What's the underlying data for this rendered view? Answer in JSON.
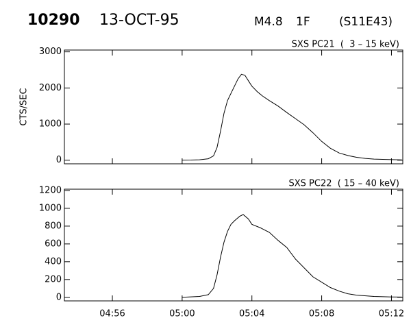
{
  "header": {
    "event": "10290",
    "date": "13-OCT-95",
    "class": "M4.8",
    "optical": "1F",
    "location": "(S11E43)"
  },
  "chart_data": [
    {
      "type": "line",
      "label": "SXS PC21  (  3 – 15 keV)",
      "ylabel": "CTS/SEC",
      "color": "#000000",
      "x": [
        300,
        300.5,
        301,
        301.5,
        301.8,
        302,
        302.2,
        302.4,
        302.6,
        302.8,
        303,
        303.2,
        303.4,
        303.6,
        303.8,
        304,
        304.3,
        304.6,
        305,
        305.5,
        306,
        306.5,
        307,
        307.5,
        308,
        308.5,
        309,
        309.5,
        310,
        310.5,
        311,
        312,
        312.6
      ],
      "values": [
        2,
        5,
        12,
        40,
        120,
        350,
        800,
        1300,
        1650,
        1850,
        2050,
        2250,
        2380,
        2350,
        2200,
        2050,
        1900,
        1780,
        1650,
        1500,
        1320,
        1150,
        980,
        760,
        520,
        330,
        200,
        130,
        80,
        50,
        30,
        15,
        10
      ],
      "xlim": [
        293.25,
        312.65
      ],
      "ylim": [
        -100,
        3050
      ],
      "yticks": [
        0,
        1000,
        2000,
        3000
      ]
    },
    {
      "type": "line",
      "label": "SXS PC22  ( 15 – 40 keV)",
      "color": "#000000",
      "x": [
        300,
        301,
        301.5,
        301.8,
        302,
        302.2,
        302.4,
        302.6,
        302.8,
        303,
        303.3,
        303.5,
        303.8,
        304,
        304.5,
        305,
        305.5,
        306,
        306.5,
        307,
        307.5,
        308,
        308.5,
        309,
        309.5,
        310,
        311,
        312,
        312.6
      ],
      "values": [
        0,
        10,
        30,
        100,
        250,
        450,
        620,
        740,
        820,
        860,
        910,
        930,
        880,
        820,
        780,
        730,
        640,
        560,
        430,
        330,
        230,
        170,
        110,
        70,
        40,
        25,
        10,
        5,
        3
      ],
      "xlim": [
        293.25,
        312.65
      ],
      "ylim": [
        -40,
        1215
      ],
      "yticks": [
        0,
        200,
        400,
        600,
        800,
        1000,
        1200
      ],
      "xticks": [
        {
          "value": 296,
          "label": "04:56"
        },
        {
          "value": 300,
          "label": "05:00"
        },
        {
          "value": 304,
          "label": "05:04"
        },
        {
          "value": 308,
          "label": "05:08"
        },
        {
          "value": 312,
          "label": "05:12"
        }
      ]
    }
  ]
}
